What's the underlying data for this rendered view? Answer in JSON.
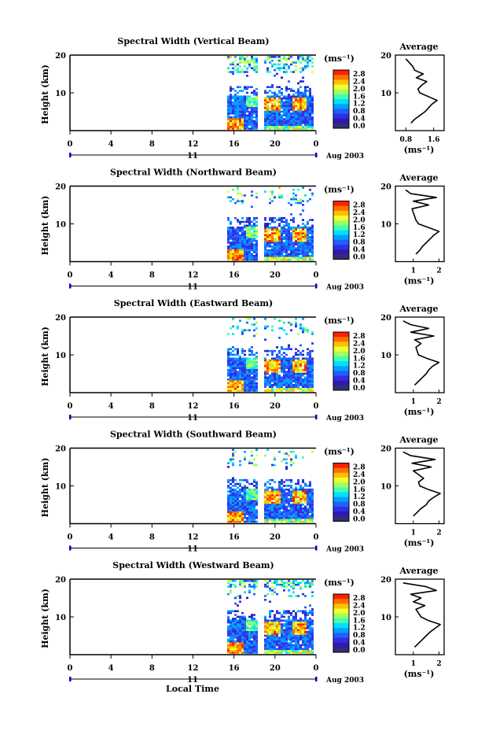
{
  "xlabel": "Local Time",
  "x_ticks": [
    "0",
    "4",
    "8",
    "12",
    "16",
    "20",
    "0"
  ],
  "date_label": "11",
  "date_right": "Aug 2003",
  "colorbar": {
    "unit_label": "(ms⁻¹)",
    "tick_labels": [
      "2.8",
      "2.4",
      "2.0",
      "1.6",
      "1.2",
      "0.8",
      "0.4",
      "0.0"
    ],
    "colors": [
      "#ff2000",
      "#ff7000",
      "#ffc000",
      "#f0ff30",
      "#a0ff60",
      "#40ffb0",
      "#00e0ff",
      "#00a0ff",
      "#2060ff",
      "#3030e0",
      "#3018b0",
      "#303070"
    ]
  },
  "average_title": "Average",
  "average_xlabel": "(ms⁻¹)",
  "panels": [
    {
      "title": "Spectral Width (Vertical Beam)",
      "ylabel": "Height (km)",
      "y_ticks": [
        "20",
        "10"
      ],
      "avg_x_ticks": [
        "0.8",
        "1.6"
      ],
      "avg_xlim": [
        0.5,
        1.9
      ],
      "avg_heights": [
        2,
        3,
        4,
        5,
        6,
        7,
        8,
        9,
        10,
        11,
        12,
        13,
        14,
        15,
        16,
        17,
        18,
        19
      ],
      "avg_values": [
        0.95,
        1.05,
        1.2,
        1.35,
        1.45,
        1.55,
        1.7,
        1.45,
        1.2,
        1.15,
        1.25,
        1.4,
        1.1,
        1.3,
        1.05,
        1.0,
        0.9,
        0.8
      ]
    },
    {
      "title": "Spectral Width (Northward Beam)",
      "ylabel": "Height (km)",
      "y_ticks": [
        "20",
        "10"
      ],
      "avg_x_ticks": [
        "1",
        "2"
      ],
      "avg_xlim": [
        0.3,
        2.2
      ],
      "avg_heights": [
        2,
        3,
        4,
        5,
        6,
        7,
        8,
        9,
        10,
        11,
        12,
        13,
        14,
        15,
        16,
        17,
        18,
        19
      ],
      "avg_values": [
        1.1,
        1.25,
        1.35,
        1.5,
        1.65,
        1.8,
        2.0,
        1.6,
        1.2,
        1.1,
        1.05,
        1.0,
        0.95,
        1.6,
        1.0,
        1.9,
        0.9,
        0.7
      ]
    },
    {
      "title": "Spectral Width (Eastward Beam)",
      "ylabel": "Height (km)",
      "y_ticks": [
        "20",
        "10"
      ],
      "avg_x_ticks": [
        "1",
        "2"
      ],
      "avg_xlim": [
        0.3,
        2.2
      ],
      "avg_heights": [
        2,
        3,
        4,
        5,
        6,
        7,
        8,
        9,
        10,
        11,
        12,
        13,
        14,
        15,
        16,
        17,
        18,
        19
      ],
      "avg_values": [
        1.05,
        1.2,
        1.35,
        1.5,
        1.6,
        1.75,
        2.0,
        1.55,
        1.2,
        1.15,
        1.1,
        1.3,
        1.05,
        1.8,
        0.9,
        1.6,
        0.9,
        0.6
      ]
    },
    {
      "title": "Spectral Width (Southward Beam)",
      "ylabel": "Height (km)",
      "y_ticks": [
        "20",
        "10"
      ],
      "avg_x_ticks": [
        "1",
        "2"
      ],
      "avg_xlim": [
        0.3,
        2.2
      ],
      "avg_heights": [
        2,
        3,
        4,
        5,
        6,
        7,
        8,
        9,
        10,
        11,
        12,
        13,
        14,
        15,
        16,
        17,
        18,
        19
      ],
      "avg_values": [
        1.0,
        1.15,
        1.3,
        1.5,
        1.6,
        1.8,
        2.05,
        1.6,
        1.25,
        1.2,
        1.4,
        1.2,
        1.0,
        1.7,
        0.95,
        1.85,
        0.9,
        0.6
      ]
    },
    {
      "title": "Spectral Width (Westward Beam)",
      "ylabel": "Height (km)",
      "y_ticks": [
        "20",
        "10"
      ],
      "avg_x_ticks": [
        "1",
        "2"
      ],
      "avg_xlim": [
        0.3,
        2.2
      ],
      "avg_heights": [
        2,
        3,
        4,
        5,
        6,
        7,
        8,
        9,
        10,
        11,
        12,
        13,
        14,
        15,
        16,
        17,
        18,
        19
      ],
      "avg_values": [
        1.05,
        1.2,
        1.35,
        1.5,
        1.65,
        1.85,
        2.05,
        1.6,
        1.3,
        1.2,
        1.1,
        1.45,
        1.0,
        1.3,
        0.9,
        1.9,
        1.5,
        0.6
      ]
    }
  ]
}
